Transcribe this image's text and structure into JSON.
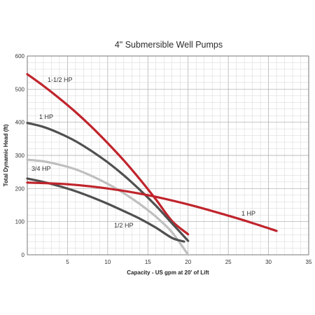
{
  "chart_data": {
    "type": "line",
    "title": "4\" Submersible Well Pumps",
    "xlabel": "Capacity - US gpm at 20' of Lift",
    "ylabel": "Total Dynamic Head (ft)",
    "xlim": [
      0,
      35
    ],
    "ylim": [
      0,
      600
    ],
    "xticks": [
      5,
      10,
      15,
      20,
      25,
      30,
      35
    ],
    "yticks": [
      0,
      100,
      200,
      300,
      400,
      500,
      600
    ],
    "grid": true,
    "colors": {
      "red": "#c0242c",
      "dark": "#505050",
      "light": "#bfbfbf"
    },
    "series": [
      {
        "name": "1-1/2 HP",
        "color": "#c0242c",
        "x": [
          0,
          2,
          4,
          6,
          8,
          10,
          12,
          14,
          16,
          18,
          20
        ],
        "y": [
          545,
          510,
          472,
          431,
          386,
          337,
          285,
          228,
          167,
          102,
          62
        ]
      },
      {
        "name": "1 HP",
        "color": "#505050",
        "x": [
          0,
          2,
          4,
          6,
          8,
          10,
          12,
          14,
          16,
          18,
          20
        ],
        "y": [
          398,
          386,
          367,
          343,
          313,
          279,
          240,
          196,
          148,
          95,
          42
        ]
      },
      {
        "name": "3/4 HP",
        "color": "#bfbfbf",
        "x": [
          0,
          2,
          4,
          6,
          8,
          10,
          12,
          14,
          16,
          18,
          20
        ],
        "y": [
          287,
          282,
          272,
          258,
          238,
          214,
          186,
          153,
          115,
          68,
          0
        ]
      },
      {
        "name": "1/2 HP",
        "color": "#505050",
        "x": [
          0,
          2,
          4,
          6,
          8,
          10,
          12,
          14,
          16,
          18,
          19.5
        ],
        "y": [
          230,
          220,
          207,
          192,
          174,
          154,
          132,
          109,
          82,
          51,
          40
        ]
      },
      {
        "name": "1 HP",
        "color": "#c0242c",
        "x": [
          0,
          5,
          10,
          15,
          20,
          25,
          28,
          31
        ],
        "y": [
          218,
          213,
          200,
          180,
          152,
          118,
          96,
          72
        ]
      }
    ]
  }
}
